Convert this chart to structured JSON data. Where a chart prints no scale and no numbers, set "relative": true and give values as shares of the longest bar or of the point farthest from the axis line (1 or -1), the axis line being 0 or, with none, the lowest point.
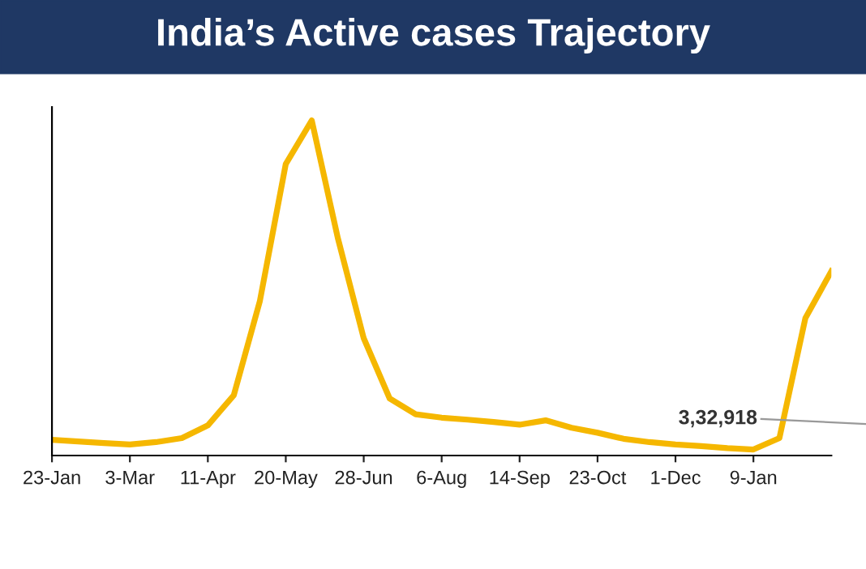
{
  "chart_data": {
    "type": "line",
    "title": "India’s Active cases Trajectory",
    "relative": true,
    "tick_labels": "x",
    "grid": false,
    "legend": false,
    "marker": "none",
    "line_style": "solid",
    "categories": [
      "23-Jan",
      null,
      null,
      "3-Mar",
      null,
      null,
      "11-Apr",
      null,
      null,
      "20-May",
      null,
      null,
      "28-Jun",
      null,
      null,
      "6-Aug",
      null,
      null,
      "14-Sep",
      null,
      null,
      "23-Oct",
      null,
      null,
      "1-Dec",
      null,
      null,
      "9-Jan",
      null,
      null,
      null
    ],
    "series": [
      {
        "color": "#f5b700",
        "values": [
          0.047,
          0.042,
          0.037,
          0.033,
          0.04,
          0.052,
          0.09,
          0.18,
          0.46,
          0.87,
          1.0,
          0.65,
          0.35,
          0.17,
          0.123,
          0.113,
          0.107,
          0.1,
          0.092,
          0.105,
          0.083,
          0.068,
          0.05,
          0.04,
          0.033,
          0.028,
          0.022,
          0.018,
          0.052,
          0.41,
          0.55
        ]
      }
    ],
    "annotations": [
      "3,32,918"
    ]
  }
}
